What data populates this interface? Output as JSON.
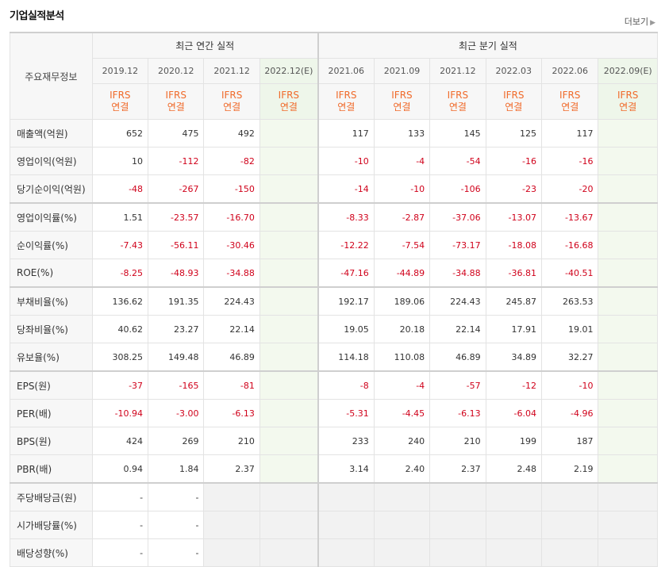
{
  "title": "기업실적분석",
  "more_label": "더보기",
  "head_label": "주요재무정보",
  "groups": {
    "annual": "최근 연간 실적",
    "quarterly": "최근 분기 실적"
  },
  "periods": [
    "2019.12",
    "2020.12",
    "2021.12",
    "2022.12(E)",
    "2021.06",
    "2021.09",
    "2021.12",
    "2022.03",
    "2022.06",
    "2022.09(E)"
  ],
  "basis": {
    "ifrs": "IFRS",
    "cons": "연결"
  },
  "rows": [
    {
      "label": "매출액(억원)",
      "values": [
        "652",
        "475",
        "492",
        "",
        "117",
        "133",
        "145",
        "125",
        "117",
        ""
      ]
    },
    {
      "label": "영업이익(억원)",
      "values": [
        "10",
        "-112",
        "-82",
        "",
        "-10",
        "-4",
        "-54",
        "-16",
        "-16",
        ""
      ]
    },
    {
      "label": "당기순이익(억원)",
      "values": [
        "-48",
        "-267",
        "-150",
        "",
        "-14",
        "-10",
        "-106",
        "-23",
        "-20",
        ""
      ]
    },
    {
      "label": "영업이익률(%)",
      "values": [
        "1.51",
        "-23.57",
        "-16.70",
        "",
        "-8.33",
        "-2.87",
        "-37.06",
        "-13.07",
        "-13.67",
        ""
      ]
    },
    {
      "label": "순이익률(%)",
      "values": [
        "-7.43",
        "-56.11",
        "-30.46",
        "",
        "-12.22",
        "-7.54",
        "-73.17",
        "-18.08",
        "-16.68",
        ""
      ]
    },
    {
      "label": "ROE(%)",
      "values": [
        "-8.25",
        "-48.93",
        "-34.88",
        "",
        "-47.16",
        "-44.89",
        "-34.88",
        "-36.81",
        "-40.51",
        ""
      ]
    },
    {
      "label": "부채비율(%)",
      "values": [
        "136.62",
        "191.35",
        "224.43",
        "",
        "192.17",
        "189.06",
        "224.43",
        "245.87",
        "263.53",
        ""
      ]
    },
    {
      "label": "당좌비율(%)",
      "values": [
        "40.62",
        "23.27",
        "22.14",
        "",
        "19.05",
        "20.18",
        "22.14",
        "17.91",
        "19.01",
        ""
      ]
    },
    {
      "label": "유보율(%)",
      "values": [
        "308.25",
        "149.48",
        "46.89",
        "",
        "114.18",
        "110.08",
        "46.89",
        "34.89",
        "32.27",
        ""
      ]
    },
    {
      "label": "EPS(원)",
      "values": [
        "-37",
        "-165",
        "-81",
        "",
        "-8",
        "-4",
        "-57",
        "-12",
        "-10",
        ""
      ]
    },
    {
      "label": "PER(배)",
      "values": [
        "-10.94",
        "-3.00",
        "-6.13",
        "",
        "-5.31",
        "-4.45",
        "-6.13",
        "-6.04",
        "-4.96",
        ""
      ]
    },
    {
      "label": "BPS(원)",
      "values": [
        "424",
        "269",
        "210",
        "",
        "233",
        "240",
        "210",
        "199",
        "187",
        ""
      ]
    },
    {
      "label": "PBR(배)",
      "values": [
        "0.94",
        "1.84",
        "2.37",
        "",
        "3.14",
        "2.40",
        "2.37",
        "2.48",
        "2.19",
        ""
      ]
    },
    {
      "label": "주당배당금(원)",
      "values": [
        "-",
        "-",
        null,
        null,
        null,
        null,
        null,
        null,
        null,
        null
      ]
    },
    {
      "label": "시가배당률(%)",
      "values": [
        "-",
        "-",
        null,
        null,
        null,
        null,
        null,
        null,
        null,
        null
      ]
    },
    {
      "label": "배당성향(%)",
      "values": [
        "-",
        "-",
        null,
        null,
        null,
        null,
        null,
        null,
        null,
        null
      ]
    }
  ]
}
